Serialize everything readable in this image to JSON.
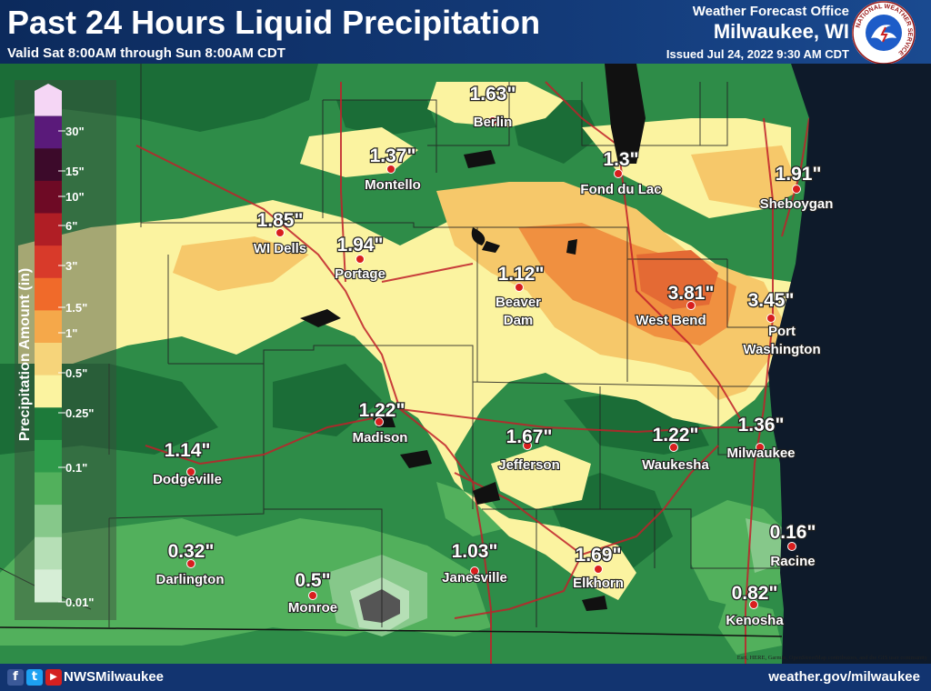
{
  "header": {
    "title": "Past 24 Hours Liquid Precipitation",
    "valid": "Valid Sat 8:00AM through Sun 8:00AM CDT",
    "office_line1": "Weather Forecast Office",
    "office_line2": "Milwaukee, WI",
    "issued": "Issued Jul 24, 2022 9:30 AM CDT",
    "logo_text": "NATIONAL WEATHER SERVICE"
  },
  "legend": {
    "axis_label": "Precipitation Amount (in)",
    "ticks": [
      "30\"",
      "15\"",
      "10\"",
      "6\"",
      "3\"",
      "1.5\"",
      "1\"",
      "0.5\"",
      "0.25\"",
      "0.1\"",
      "0.01\""
    ],
    "colors": [
      "#f5d6f5",
      "#5a1a7a",
      "#3c0a2a",
      "#6e0a25",
      "#b01e25",
      "#d83a2a",
      "#f06a2a",
      "#f5a84a",
      "#f6d47a",
      "#fbf3a0",
      "#1d7a3a",
      "#2e9a4a",
      "#52b05c",
      "#86c88a",
      "#b6dfb6",
      "#d6eed6"
    ]
  },
  "cities": [
    {
      "name": "Berlin",
      "amount": "1.63\""
    },
    {
      "name": "Montello",
      "amount": "1.37\""
    },
    {
      "name": "Fond du Lac",
      "amount": "1.3\""
    },
    {
      "name": "Sheboygan",
      "amount": "1.91\""
    },
    {
      "name": "WI Dells",
      "amount": "1.85\""
    },
    {
      "name": "Portage",
      "amount": "1.94\""
    },
    {
      "name": "Beaver\nDam",
      "amount": "1.12\""
    },
    {
      "name": "West Bend",
      "amount": "3.81\""
    },
    {
      "name": "Port\nWashington",
      "amount": "3.45\""
    },
    {
      "name": "Madison",
      "amount": "1.22\""
    },
    {
      "name": "Jefferson",
      "amount": "1.67\""
    },
    {
      "name": "Waukesha",
      "amount": "1.22\""
    },
    {
      "name": "Milwaukee",
      "amount": "1.36\""
    },
    {
      "name": "Dodgeville",
      "amount": "1.14\""
    },
    {
      "name": "Darlington",
      "amount": "0.32\""
    },
    {
      "name": "Monroe",
      "amount": "0.5\""
    },
    {
      "name": "Janesville",
      "amount": "1.03\""
    },
    {
      "name": "Elkhorn",
      "amount": "1.69\""
    },
    {
      "name": "Racine",
      "amount": "0.16\""
    },
    {
      "name": "Kenosha",
      "amount": "0.82\""
    }
  ],
  "attribution": "Esri, HERE, Garmin, OpenStreetMap contributors, and the GIS user community",
  "footer": {
    "handle": "NWSMilwaukee",
    "url": "weather.gov/milwaukee",
    "social": [
      "f",
      "t",
      "▶"
    ]
  }
}
